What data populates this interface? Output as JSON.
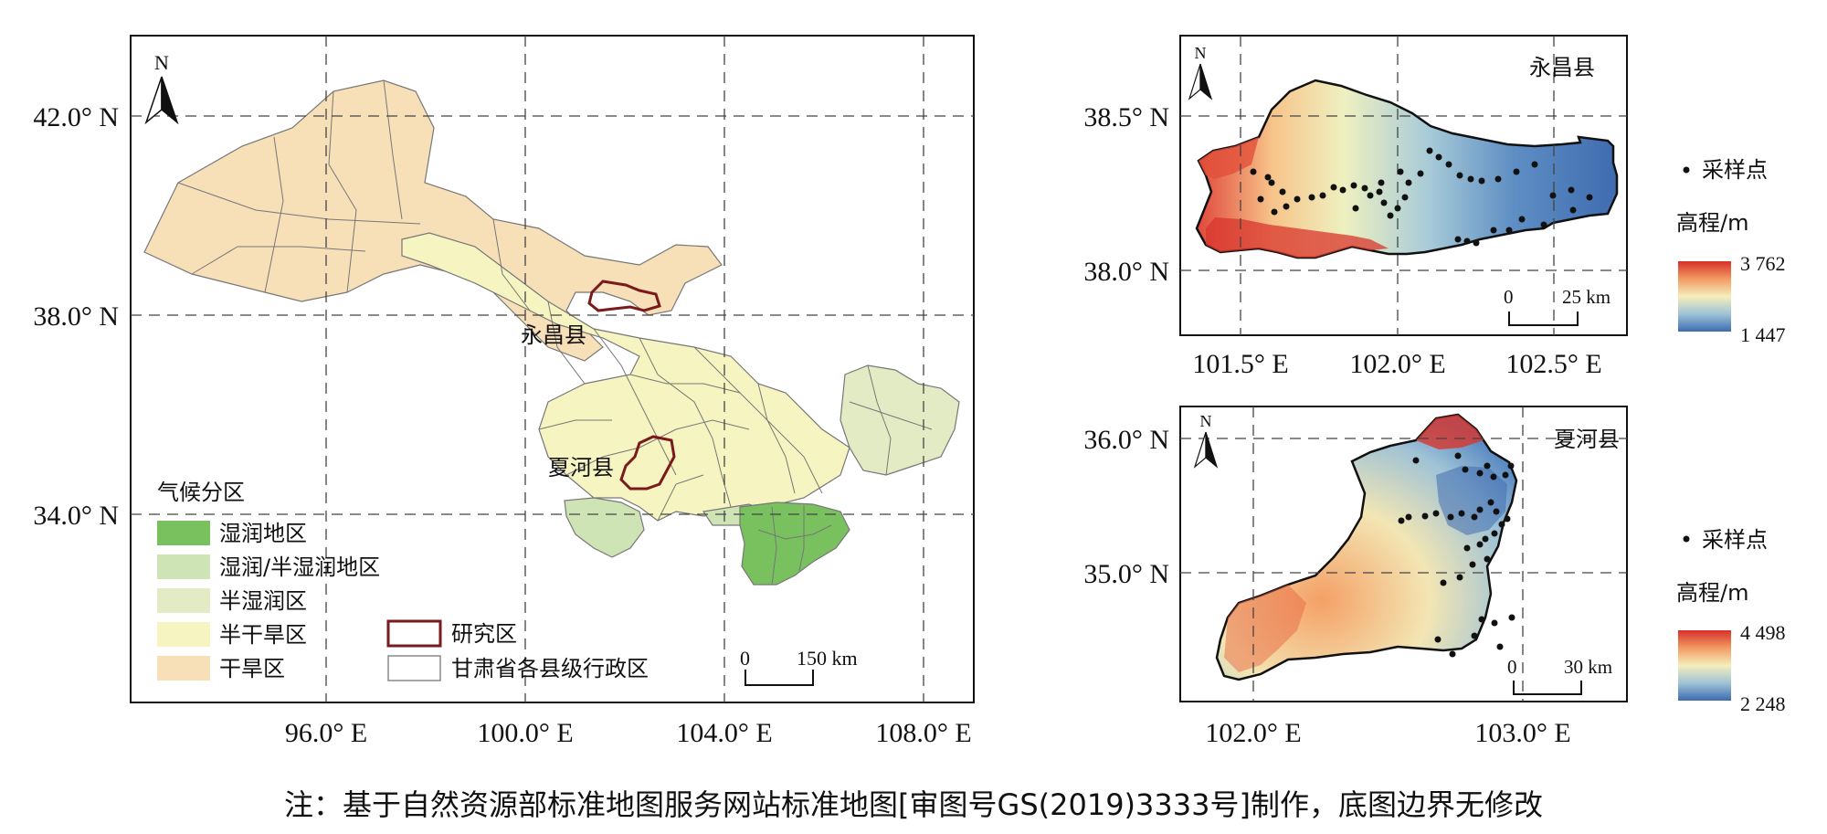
{
  "main_map": {
    "lat_labels": [
      "42.0° N",
      "38.0° N",
      "34.0° N"
    ],
    "lon_labels": [
      "96.0° E",
      "100.0° E",
      "104.0° E",
      "108.0° E"
    ],
    "north_label": "N",
    "county_labels": {
      "yongchang": "永昌县",
      "xiahe": "夏河县"
    },
    "legend": {
      "title": "气候分区",
      "items": [
        {
          "label": "湿润地区",
          "color": "#79c15e"
        },
        {
          "label": "湿润/半湿润地区",
          "color": "#cfe4b4"
        },
        {
          "label": "半湿润区",
          "color": "#e3ebc4"
        },
        {
          "label": "半干旱区",
          "color": "#f6f5c1"
        },
        {
          "label": "干旱区",
          "color": "#f7dfb8"
        }
      ],
      "boundary_items": [
        {
          "label": "研究区",
          "color": "#7a1a1a"
        },
        {
          "label": "甘肃省各县级行政区",
          "color": "#888888"
        }
      ]
    },
    "scale_bar": {
      "start": "0",
      "end": "150 km"
    }
  },
  "yongchang_map": {
    "title": "永昌县",
    "north_label": "N",
    "lat_labels": [
      "38.5° N",
      "38.0° N"
    ],
    "lon_labels": [
      "101.5° E",
      "102.0° E",
      "102.5° E"
    ],
    "scale_bar": {
      "start": "0",
      "end": "25 km"
    },
    "legend": {
      "points_label": "采样点",
      "elev_title": "高程/m",
      "max": "3 762",
      "min": "1 447"
    }
  },
  "xiahe_map": {
    "title": "夏河县",
    "north_label": "N",
    "lat_labels": [
      "36.0° N",
      "35.0° N"
    ],
    "lon_labels": [
      "102.0° E",
      "103.0° E"
    ],
    "scale_bar": {
      "start": "0",
      "end": "30 km"
    },
    "legend": {
      "points_label": "采样点",
      "elev_title": "高程/m",
      "max": "4 498",
      "min": "2 248"
    }
  },
  "footnote": "注：基于自然资源部标准地图服务网站标准地图[审图号GS(2019)3333号]制作，底图边界无修改"
}
